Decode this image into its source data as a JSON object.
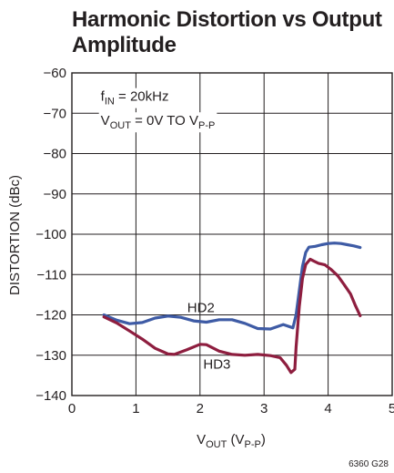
{
  "title_lines": [
    "Harmonic Distortion vs Output",
    "Amplitude"
  ],
  "figure_code": "6360 G28",
  "chart_data": {
    "type": "line",
    "xlabel": {
      "base": "V",
      "sub": "OUT",
      "rest": " (V",
      "sub2": "P-P",
      "end": ")"
    },
    "ylabel": "DISTORTION (dBc)",
    "xlim": [
      0,
      5
    ],
    "ylim": [
      -140,
      -60
    ],
    "xticks": [
      0,
      1,
      2,
      3,
      4,
      5
    ],
    "yticks": [
      -140,
      -130,
      -120,
      -110,
      -100,
      -90,
      -80,
      -70,
      -60
    ],
    "xtick_labels": [
      "0",
      "1",
      "2",
      "3",
      "4",
      "5"
    ],
    "ytick_labels": [
      "−140",
      "−130",
      "−120",
      "−110",
      "−100",
      "−90",
      "−80",
      "−70",
      "−60"
    ],
    "grid": true,
    "annotations": [
      {
        "id": "fin",
        "base": "f",
        "sub": "IN",
        "rest": " = 20kHz",
        "x": 0.45,
        "y": -65.8
      },
      {
        "id": "vout",
        "base": "V",
        "sub": "OUT",
        "rest": " = 0V TO V",
        "sub2": "P-P",
        "x": 0.45,
        "y": -71.8
      }
    ],
    "series": [
      {
        "name": "HD2",
        "color": "#3e5ba5",
        "label_pos": [
          2.0,
          -118.2
        ],
        "x": [
          0.5,
          0.7,
          0.9,
          1.1,
          1.3,
          1.5,
          1.7,
          1.9,
          2.1,
          2.3,
          2.5,
          2.7,
          2.9,
          3.1,
          3.3,
          3.45,
          3.5,
          3.55,
          3.6,
          3.65,
          3.7,
          3.8,
          3.9,
          4.0,
          4.1,
          4.2,
          4.3,
          4.4,
          4.5
        ],
        "values": [
          -120,
          -121.3,
          -122.2,
          -121.9,
          -120.8,
          -120.3,
          -120.6,
          -121.5,
          -121.8,
          -121.2,
          -121.2,
          -122.1,
          -123.4,
          -123.5,
          -122.4,
          -123.2,
          -120,
          -114,
          -108,
          -104.5,
          -103.2,
          -103,
          -102.6,
          -102.3,
          -102.2,
          -102.3,
          -102.6,
          -102.9,
          -103.3
        ]
      },
      {
        "name": "HD3",
        "color": "#8e1e3f",
        "label_pos": [
          2.25,
          -132.2
        ],
        "x": [
          0.5,
          0.7,
          0.9,
          1.1,
          1.3,
          1.5,
          1.6,
          1.8,
          2.0,
          2.1,
          2.3,
          2.5,
          2.7,
          2.9,
          3.1,
          3.25,
          3.35,
          3.42,
          3.48,
          3.5,
          3.55,
          3.6,
          3.65,
          3.72,
          3.78,
          3.85,
          3.95,
          4.05,
          4.15,
          4.25,
          4.35,
          4.42,
          4.5
        ],
        "values": [
          -120.5,
          -122,
          -124,
          -126,
          -128.3,
          -129.7,
          -129.8,
          -128.6,
          -127.3,
          -127.4,
          -129,
          -129.8,
          -130,
          -129.8,
          -130.1,
          -130.6,
          -132.5,
          -134.3,
          -133.5,
          -128,
          -118,
          -111,
          -107.5,
          -106.2,
          -106.7,
          -107.2,
          -107.6,
          -108.8,
          -110.3,
          -112.5,
          -114.8,
          -117.5,
          -120.2
        ]
      }
    ]
  }
}
